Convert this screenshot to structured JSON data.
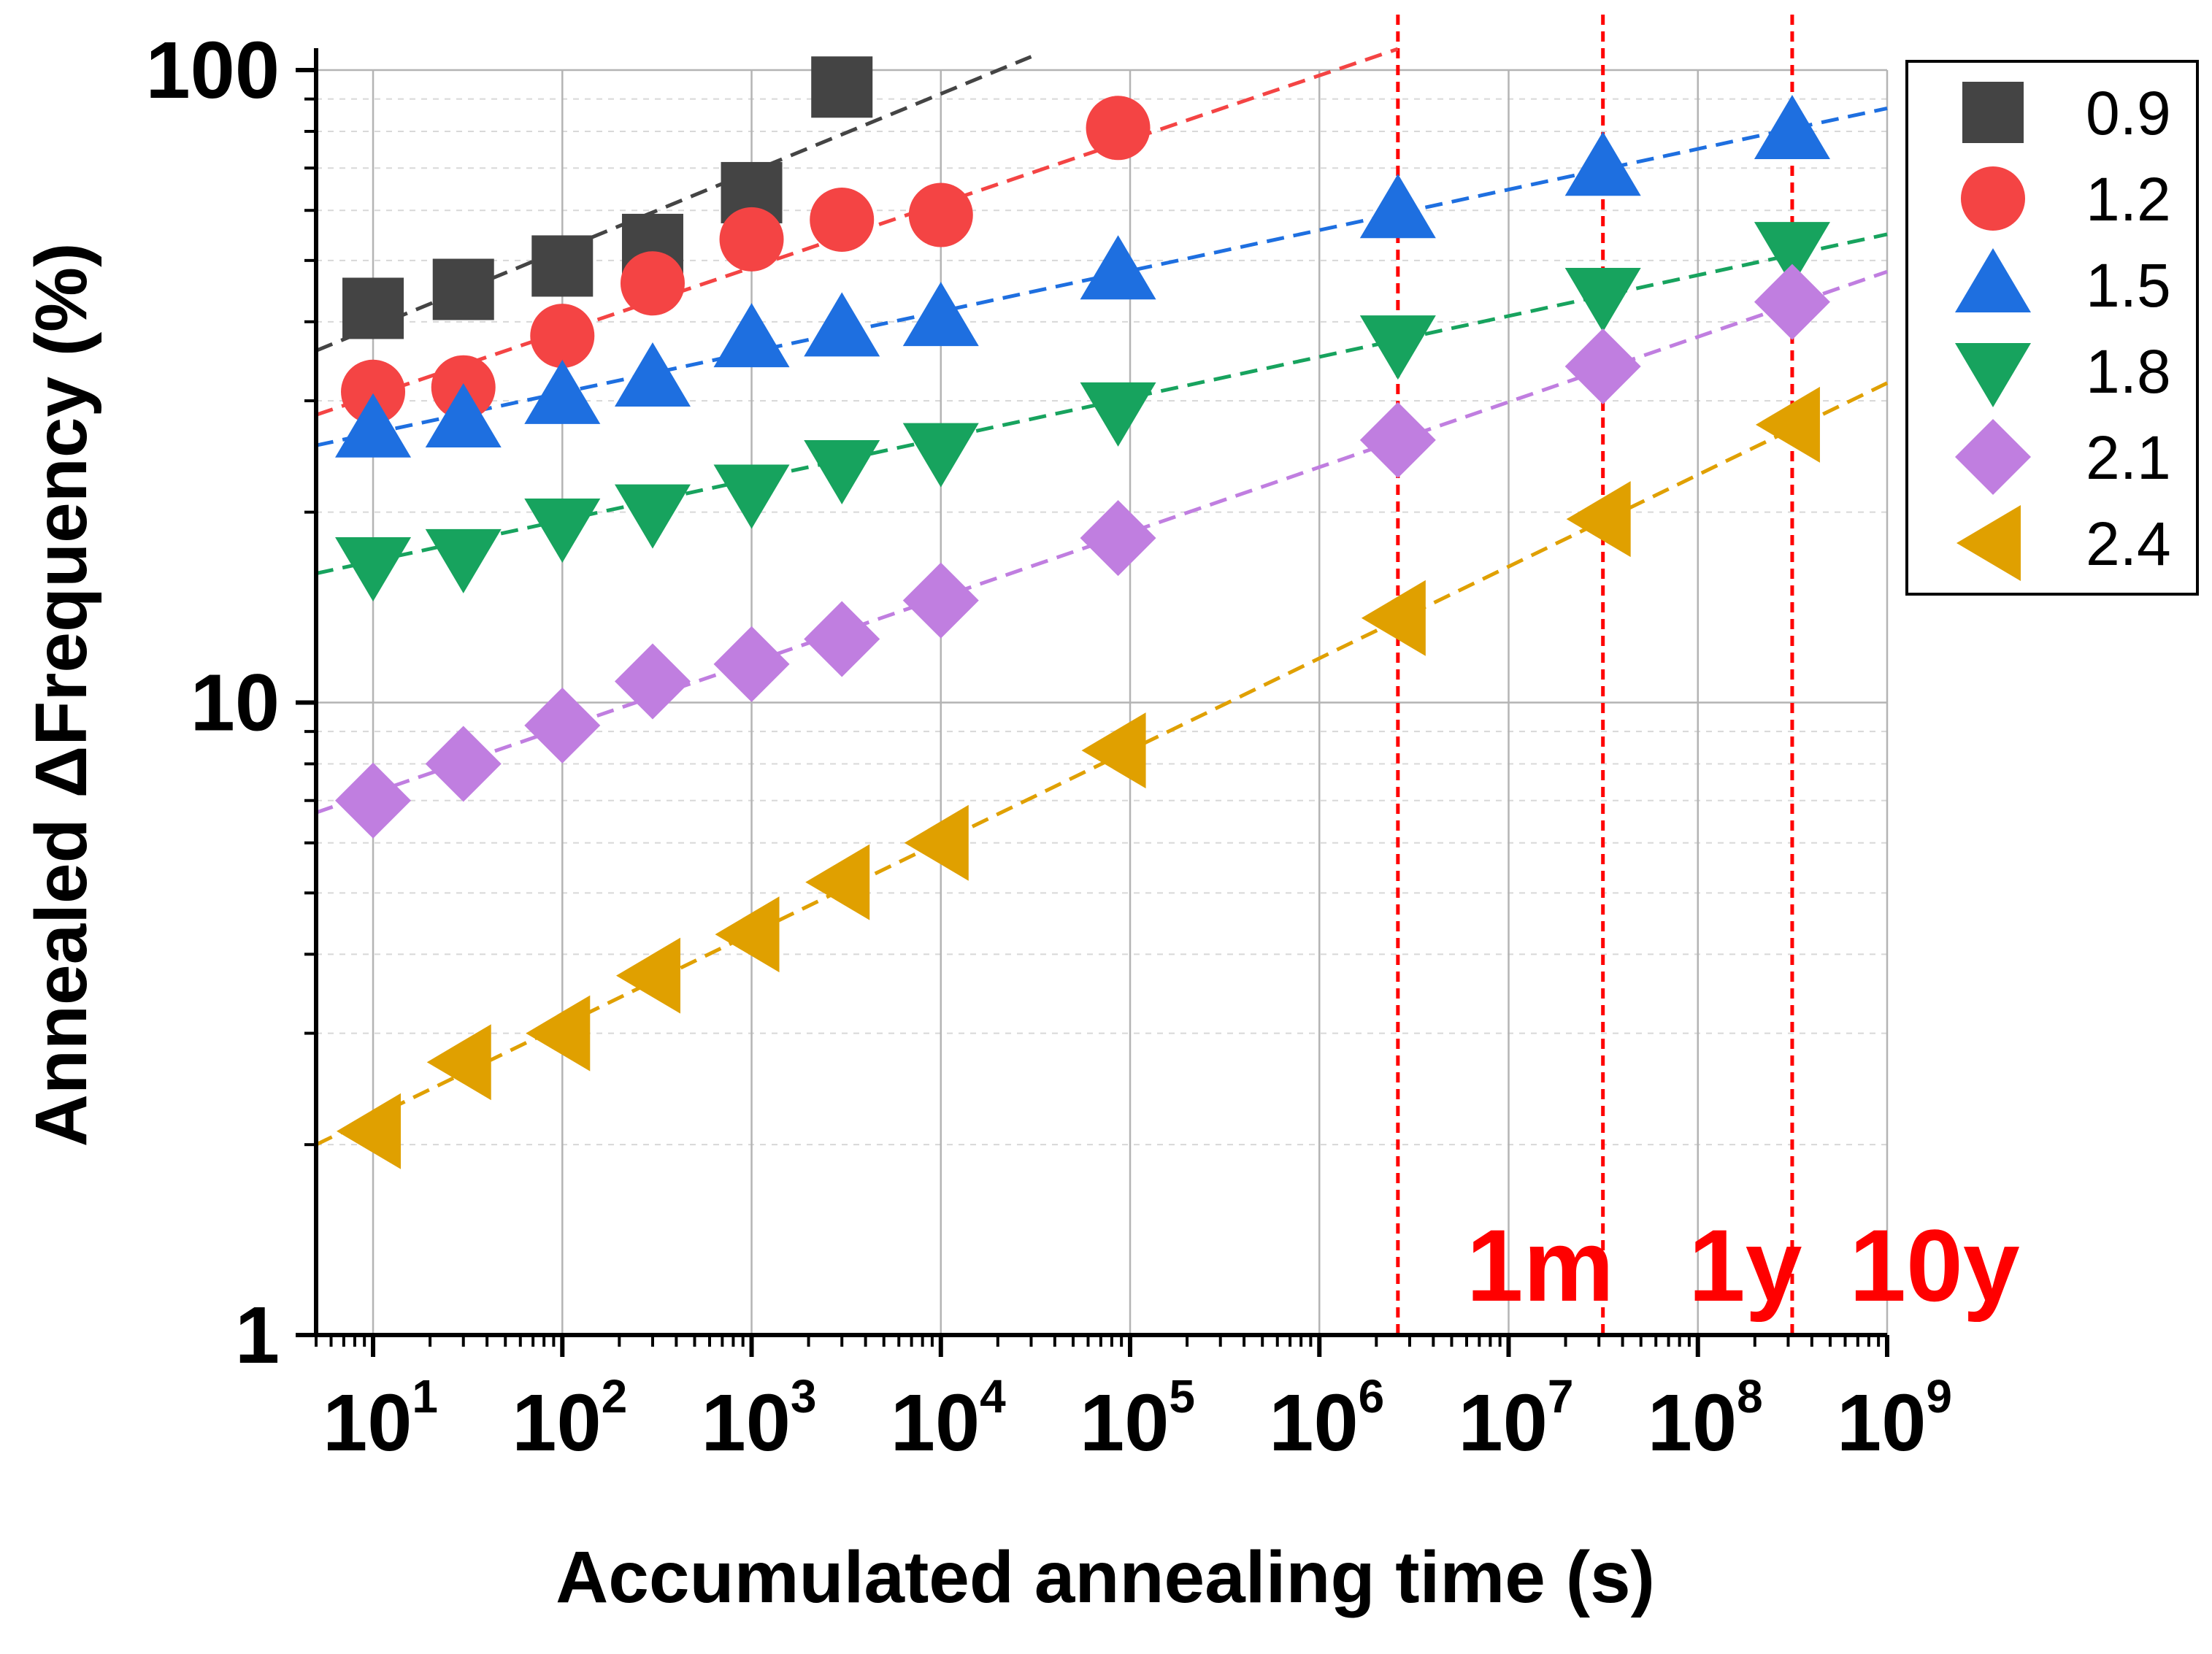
{
  "chart_data": {
    "type": "scatter",
    "title": "",
    "xlabel": "Accumulated annealing time (s)",
    "ylabel": "Annealed ΔFrequency (%)",
    "xscale": "log",
    "yscale": "log",
    "xlim": [
      5,
      1000000000
    ],
    "ylim": [
      1,
      100
    ],
    "x_ticks": [
      {
        "base": "10",
        "exp": "1"
      },
      {
        "base": "10",
        "exp": "2"
      },
      {
        "base": "10",
        "exp": "3"
      },
      {
        "base": "10",
        "exp": "4"
      },
      {
        "base": "10",
        "exp": "5"
      },
      {
        "base": "10",
        "exp": "6"
      },
      {
        "base": "10",
        "exp": "7"
      },
      {
        "base": "10",
        "exp": "8"
      },
      {
        "base": "10",
        "exp": "9"
      }
    ],
    "y_ticks": [
      "1",
      "10",
      "100"
    ],
    "grid": true,
    "legend_position": "top-right",
    "series": [
      {
        "name": "0.9",
        "color": "#444444",
        "marker": "square",
        "x": [
          10,
          30,
          100,
          300,
          1000,
          3000
        ],
        "y": [
          42,
          45,
          49,
          53,
          64,
          94
        ],
        "fit": [
          [
            5,
            36
          ],
          [
            30000,
            105
          ]
        ]
      },
      {
        "name": "1.2",
        "color": "#f44444",
        "marker": "circle",
        "x": [
          10,
          30,
          100,
          300,
          1000,
          3000,
          10000,
          86400
        ],
        "y": [
          31,
          31.5,
          38,
          46,
          54,
          58,
          59,
          81
        ],
        "fit": [
          [
            5,
            28.5
          ],
          [
            2600000,
            108
          ]
        ]
      },
      {
        "name": "1.5",
        "color": "#1e6fe0",
        "marker": "triangle-up",
        "x": [
          10,
          30,
          100,
          300,
          1000,
          3000,
          10000,
          86400,
          2600000,
          31500000,
          315000000
        ],
        "y": [
          27,
          28,
          30.5,
          32.5,
          37.5,
          39,
          40.5,
          48,
          60,
          70,
          80
        ],
        "fit": [
          [
            5,
            25.5
          ],
          [
            1000000000,
            87
          ]
        ]
      },
      {
        "name": "1.8",
        "color": "#17a35e",
        "marker": "triangle-down",
        "x": [
          10,
          30,
          100,
          300,
          1000,
          3000,
          10000,
          86400,
          2600000,
          31500000,
          315000000
        ],
        "y": [
          16.5,
          17,
          19,
          20,
          21.5,
          23.5,
          25,
          29,
          37,
          44,
          52
        ],
        "fit": [
          [
            5,
            16
          ],
          [
            1000000000,
            55
          ]
        ]
      },
      {
        "name": "2.1",
        "color": "#c07ee0",
        "marker": "diamond",
        "x": [
          10,
          30,
          100,
          300,
          1000,
          3000,
          10000,
          86400,
          2600000,
          31500000,
          315000000
        ],
        "y": [
          7,
          8,
          9.2,
          10.8,
          11.5,
          12.6,
          14.5,
          18.2,
          26,
          34,
          43
        ],
        "fit": [
          [
            5,
            6.7
          ],
          [
            1000000000,
            48
          ]
        ]
      },
      {
        "name": "2.4",
        "color": "#e0a000",
        "marker": "triangle-left",
        "x": [
          10,
          30,
          100,
          300,
          1000,
          3000,
          10000,
          86400,
          2600000,
          31500000,
          315000000
        ],
        "y": [
          2.1,
          2.7,
          3.0,
          3.7,
          4.3,
          5.2,
          6.0,
          8.4,
          13.6,
          19.5,
          27.5
        ],
        "fit": [
          [
            5,
            2.0
          ],
          [
            1000000000,
            32
          ]
        ]
      }
    ],
    "vlines": [
      {
        "x": 2600000,
        "label": "1m",
        "color": "#ff0000"
      },
      {
        "x": 31500000,
        "label": "1y",
        "color": "#ff0000"
      },
      {
        "x": 315000000,
        "label": "10y",
        "color": "#ff0000"
      }
    ]
  }
}
